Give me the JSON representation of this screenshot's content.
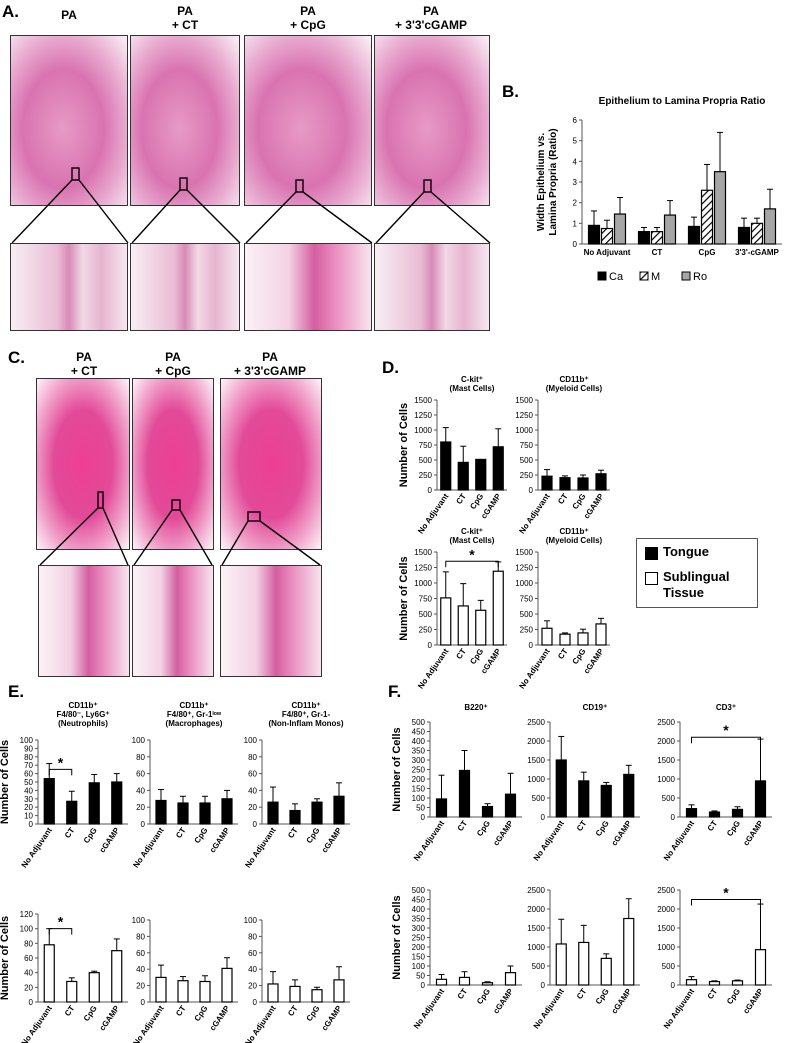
{
  "panels": {
    "A": {
      "label": "A.",
      "titles": [
        "PA",
        "PA\n+ CT",
        "PA\n+ CpG",
        "PA\n+ 3'3'cGAMP"
      ]
    },
    "B": {
      "label": "B."
    },
    "C": {
      "label": "C.",
      "titles": [
        "PA\n+ CT",
        "PA\n+ CpG",
        "PA\n+ 3'3'cGAMP"
      ]
    },
    "D": {
      "label": "D."
    },
    "E": {
      "label": "E."
    },
    "F": {
      "label": "F."
    }
  },
  "legend_D": {
    "items": [
      {
        "label": "Tongue",
        "fill": "#000000"
      },
      {
        "label": "Sublingual\nTissue",
        "fill": "#ffffff"
      }
    ]
  },
  "chart_data": [
    {
      "id": "B",
      "type": "bar",
      "title": "Epithelium to Lamina Propria Ratio",
      "ylabel": "Width Epithelium vs.\nLamina Propria (Ratio)",
      "categories": [
        "No Adjuvant",
        "CT",
        "CpG",
        "3'3'-cGAMP"
      ],
      "ylim": [
        0,
        6
      ],
      "yticks": [
        0,
        1,
        2,
        3,
        4,
        5,
        6
      ],
      "series": [
        {
          "name": "Ca",
          "fill": "#000000",
          "values": [
            0.9,
            0.6,
            0.85,
            0.8
          ],
          "errors": [
            0.7,
            0.2,
            0.45,
            0.45
          ]
        },
        {
          "name": "M",
          "fill": "hatch",
          "values": [
            0.75,
            0.6,
            2.6,
            1.0
          ],
          "errors": [
            0.4,
            0.2,
            1.25,
            0.25
          ]
        },
        {
          "name": "Ro",
          "fill": "#a6a6a6",
          "values": [
            1.45,
            1.4,
            3.5,
            1.7
          ],
          "errors": [
            0.8,
            0.7,
            1.9,
            0.95
          ]
        }
      ]
    },
    {
      "id": "D1",
      "type": "bar",
      "title": "C-kit⁺\n(Mast Cells)",
      "ylabel": "Number of Cells",
      "fill": "#000000",
      "categories": [
        "No Adjuvant",
        "CT",
        "CpG",
        "cGAMP"
      ],
      "ylim": [
        0,
        1500
      ],
      "yticks": [
        0,
        250,
        500,
        750,
        1000,
        1250,
        1500
      ],
      "values": [
        800,
        460,
        510,
        720
      ],
      "errors": [
        240,
        270,
        0,
        300
      ]
    },
    {
      "id": "D2",
      "type": "bar",
      "title": "CD11b⁺\n(Myeloid Cells)",
      "ylabel": "",
      "fill": "#000000",
      "categories": [
        "No Adjuvant",
        "CT",
        "CpG",
        "cGAMP"
      ],
      "ylim": [
        0,
        1500
      ],
      "yticks": [
        0,
        250,
        500,
        750,
        1000,
        1250,
        1500
      ],
      "values": [
        230,
        205,
        200,
        270
      ],
      "errors": [
        110,
        30,
        50,
        60
      ]
    },
    {
      "id": "D3",
      "type": "bar",
      "title": "C-kit⁺\n(Mast Cells)",
      "ylabel": "Number of Cells",
      "fill": "#ffffff",
      "categories": [
        "No Adjuvant",
        "CT",
        "CpG",
        "cGAMP"
      ],
      "ylim": [
        0,
        1500
      ],
      "yticks": [
        0,
        250,
        500,
        750,
        1000,
        1250,
        1500
      ],
      "values": [
        760,
        630,
        560,
        1190
      ],
      "errors": [
        420,
        360,
        160,
        150
      ],
      "sig": {
        "from": 0,
        "to": 3,
        "y": 1350,
        "mark": "*"
      }
    },
    {
      "id": "D4",
      "type": "bar",
      "title": "CD11b⁺\n(Myeloid Cells)",
      "ylabel": "",
      "fill": "#ffffff",
      "categories": [
        "No Adjuvant",
        "CT",
        "CpG",
        "cGAMP"
      ],
      "ylim": [
        0,
        1500
      ],
      "yticks": [
        0,
        250,
        500,
        750,
        1000,
        1250,
        1500
      ],
      "values": [
        270,
        175,
        195,
        340
      ],
      "errors": [
        120,
        20,
        60,
        90
      ]
    },
    {
      "id": "E1",
      "type": "bar",
      "title": "CD11b⁺\nF4/80⁻, Ly6G⁺\n(Neutrophils)",
      "ylabel": "Number of Cells",
      "fill": "#000000",
      "categories": [
        "No Adjuvant",
        "CT",
        "CpG",
        "cGAMP"
      ],
      "ylim": [
        0,
        100
      ],
      "yticks": [
        0,
        10,
        20,
        30,
        40,
        50,
        60,
        70,
        80,
        90,
        100
      ],
      "values": [
        54,
        27,
        49,
        50
      ],
      "errors": [
        18,
        12,
        10,
        10
      ],
      "sig": {
        "from": 0,
        "to": 1,
        "y": 65,
        "mark": "*"
      }
    },
    {
      "id": "E2",
      "type": "bar",
      "title": "CD11b⁺\nF4/80⁺, Gr-1ˡᵒʷ\n(Macrophages)",
      "ylabel": "",
      "fill": "#000000",
      "categories": [
        "No Adjuvant",
        "CT",
        "CpG",
        "cGAMP"
      ],
      "ylim": [
        0,
        100
      ],
      "yticks": [
        0,
        20,
        40,
        60,
        80,
        100
      ],
      "values": [
        28,
        25,
        25,
        30
      ],
      "errors": [
        13,
        8,
        8,
        10
      ]
    },
    {
      "id": "E3",
      "type": "bar",
      "title": "CD11b⁺\nF4/80⁺, Gr-1-\n(Non-Inflam Monos)",
      "ylabel": "",
      "fill": "#000000",
      "categories": [
        "No Adjuvant",
        "CT",
        "CpG",
        "cGAMP"
      ],
      "ylim": [
        0,
        100
      ],
      "yticks": [
        0,
        20,
        40,
        60,
        80,
        100
      ],
      "values": [
        26,
        16,
        26,
        33
      ],
      "errors": [
        18,
        8,
        4,
        16
      ]
    },
    {
      "id": "E4",
      "type": "bar",
      "title": "",
      "ylabel": "Number of Cells",
      "fill": "#ffffff",
      "categories": [
        "No Adjuvant",
        "CT",
        "CpG",
        "cGAMP"
      ],
      "ylim": [
        0,
        120
      ],
      "yticks": [
        0,
        20,
        40,
        60,
        80,
        100,
        120
      ],
      "values": [
        78,
        28,
        40,
        70
      ],
      "errors": [
        22,
        5,
        2,
        16
      ],
      "sig": {
        "from": 0,
        "to": 1,
        "y": 100,
        "mark": "*"
      }
    },
    {
      "id": "E5",
      "type": "bar",
      "title": "",
      "ylabel": "",
      "fill": "#ffffff",
      "categories": [
        "No Adjuvant",
        "CT",
        "CpG",
        "cGAMP"
      ],
      "ylim": [
        0,
        100
      ],
      "yticks": [
        0,
        20,
        40,
        60,
        80,
        100
      ],
      "values": [
        30,
        26,
        25,
        41
      ],
      "errors": [
        15,
        5,
        7,
        13
      ]
    },
    {
      "id": "E6",
      "type": "bar",
      "title": "",
      "ylabel": "",
      "fill": "#ffffff",
      "categories": [
        "No Adjuvant",
        "CT",
        "CpG",
        "cGAMP"
      ],
      "ylim": [
        0,
        100
      ],
      "yticks": [
        0,
        20,
        40,
        60,
        80,
        100
      ],
      "values": [
        22,
        19,
        15,
        27
      ],
      "errors": [
        15,
        8,
        3,
        16
      ]
    },
    {
      "id": "F1",
      "type": "bar",
      "title": "B220⁺",
      "ylabel": "Number of Cells",
      "fill": "#000000",
      "categories": [
        "No Adjuvant",
        "CT",
        "CpG",
        "cGAMP"
      ],
      "ylim": [
        0,
        500
      ],
      "yticks": [
        0,
        50,
        100,
        150,
        200,
        250,
        300,
        350,
        400,
        450,
        500
      ],
      "values": [
        95,
        245,
        55,
        120
      ],
      "errors": [
        125,
        105,
        15,
        110
      ]
    },
    {
      "id": "F2",
      "type": "bar",
      "title": "CD19⁺",
      "ylabel": "",
      "fill": "#000000",
      "categories": [
        "No Adjuvant",
        "CT",
        "CpG",
        "cGAMP"
      ],
      "ylim": [
        0,
        2500
      ],
      "yticks": [
        0,
        500,
        1000,
        1500,
        2000,
        2500
      ],
      "values": [
        1500,
        950,
        830,
        1120
      ],
      "errors": [
        620,
        230,
        80,
        240
      ]
    },
    {
      "id": "F3",
      "type": "bar",
      "title": "CD3⁺",
      "ylabel": "",
      "fill": "#000000",
      "categories": [
        "No Adjuvant",
        "CT",
        "CpG",
        "cGAMP"
      ],
      "ylim": [
        0,
        2500
      ],
      "yticks": [
        0,
        500,
        1000,
        1500,
        2000,
        2500
      ],
      "values": [
        220,
        130,
        200,
        950
      ],
      "errors": [
        100,
        30,
        70,
        1100
      ],
      "sig": {
        "from": 0,
        "to": 3,
        "y": 2100,
        "mark": "*"
      }
    },
    {
      "id": "F4",
      "type": "bar",
      "title": "",
      "ylabel": "Number of Cells",
      "fill": "#ffffff",
      "categories": [
        "No Adjuvant",
        "CT",
        "CpG",
        "cGAMP"
      ],
      "ylim": [
        0,
        500
      ],
      "yticks": [
        0,
        50,
        100,
        150,
        200,
        250,
        300,
        350,
        400,
        450,
        500
      ],
      "values": [
        30,
        40,
        12,
        65
      ],
      "errors": [
        25,
        30,
        5,
        35
      ]
    },
    {
      "id": "F5",
      "type": "bar",
      "title": "",
      "ylabel": "",
      "fill": "#ffffff",
      "categories": [
        "No Adjuvant",
        "CT",
        "CpG",
        "cGAMP"
      ],
      "ylim": [
        0,
        2500
      ],
      "yticks": [
        0,
        500,
        1000,
        1500,
        2000,
        2500
      ],
      "values": [
        1080,
        1120,
        700,
        1750
      ],
      "errors": [
        650,
        450,
        120,
        520
      ]
    },
    {
      "id": "F6",
      "type": "bar",
      "title": "",
      "ylabel": "",
      "fill": "#ffffff",
      "categories": [
        "No Adjuvant",
        "CT",
        "CpG",
        "cGAMP"
      ],
      "ylim": [
        0,
        2500
      ],
      "yticks": [
        0,
        500,
        1000,
        1500,
        2000,
        2500
      ],
      "values": [
        140,
        90,
        110,
        930
      ],
      "errors": [
        80,
        20,
        20,
        1200
      ],
      "sig": {
        "from": 0,
        "to": 3,
        "y": 2250,
        "mark": "*"
      }
    }
  ]
}
